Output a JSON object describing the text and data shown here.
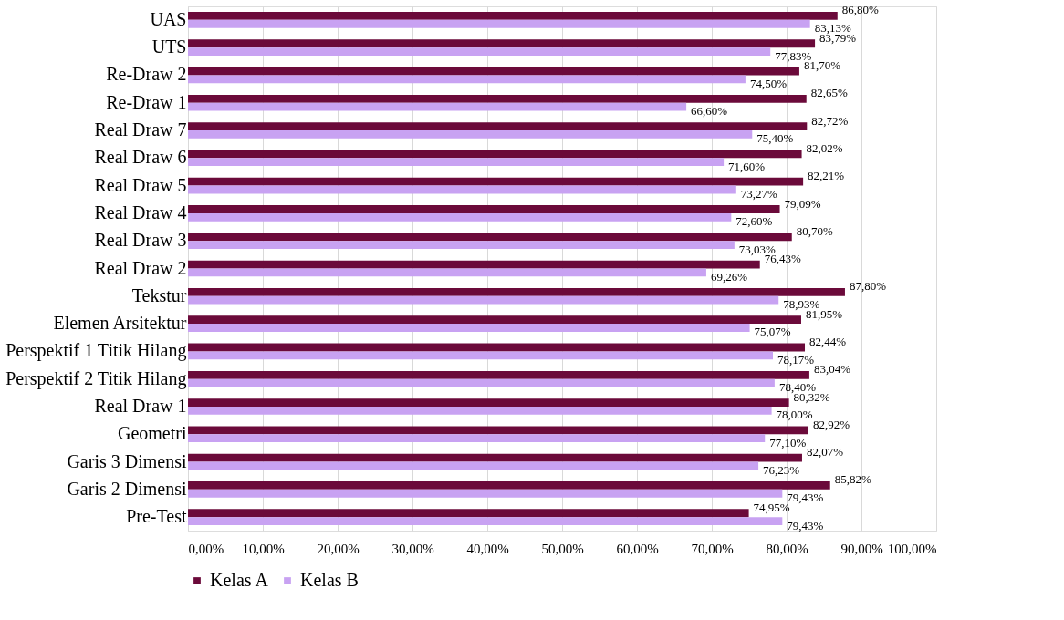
{
  "chart_data": {
    "type": "bar",
    "orientation": "horizontal",
    "categories": [
      "UAS",
      "UTS",
      "Re-Draw 2",
      "Re-Draw 1",
      "Real Draw 7",
      "Real Draw 6",
      "Real Draw 5",
      "Real Draw 4",
      "Real Draw 3",
      "Real Draw 2",
      "Tekstur",
      "Elemen Arsitektur",
      "Perspektif 1 Titik Hilang",
      "Perspektif 2 Titik Hilang",
      "Real Draw 1",
      "Geometri",
      "Garis 3 Dimensi",
      "Garis 2 Dimensi",
      "Pre-Test"
    ],
    "series": [
      {
        "name": "Kelas A",
        "color": "#6b0a3a",
        "values": [
          86.8,
          83.79,
          81.7,
          82.65,
          82.72,
          82.02,
          82.21,
          79.09,
          80.7,
          76.43,
          87.8,
          81.95,
          82.44,
          83.04,
          80.32,
          82.92,
          82.07,
          85.82,
          74.95
        ],
        "value_labels": [
          "86,80%",
          "83,79%",
          "81,70%",
          "82,65%",
          "82,72%",
          "82,02%",
          "82,21%",
          "79,09%",
          "80,70%",
          "76,43%",
          "87,80%",
          "81,95%",
          "82,44%",
          "83,04%",
          "80,32%",
          "82,92%",
          "82,07%",
          "85,82%",
          "74,95%"
        ]
      },
      {
        "name": "Kelas B",
        "color": "#c8a2f2",
        "values": [
          83.13,
          77.83,
          74.5,
          66.6,
          75.4,
          71.6,
          73.27,
          72.6,
          73.03,
          69.26,
          78.93,
          75.07,
          78.17,
          78.4,
          78.0,
          77.1,
          76.23,
          79.43,
          79.43
        ],
        "value_labels": [
          "83,13%",
          "77,83%",
          "74,50%",
          "66,60%",
          "75,40%",
          "71,60%",
          "73,27%",
          "72,60%",
          "73,03%",
          "69,26%",
          "78,93%",
          "75,07%",
          "78,17%",
          "78,40%",
          "78,00%",
          "77,10%",
          "76,23%",
          "79,43%",
          "79,43%"
        ]
      }
    ],
    "xlim": [
      0,
      100
    ],
    "xticks": [
      {
        "value": 0,
        "label": "0,00%"
      },
      {
        "value": 10,
        "label": "10,00%"
      },
      {
        "value": 20,
        "label": "20,00%"
      },
      {
        "value": 30,
        "label": "30,00%"
      },
      {
        "value": 40,
        "label": "40,00%"
      },
      {
        "value": 50,
        "label": "50,00%"
      },
      {
        "value": 60,
        "label": "60,00%"
      },
      {
        "value": 70,
        "label": "70,00%"
      },
      {
        "value": 80,
        "label": "80,00%"
      },
      {
        "value": 90,
        "label": "90,00%"
      },
      {
        "value": 100,
        "label": "100,00%"
      }
    ],
    "grid": "x",
    "legend": "bottom"
  }
}
